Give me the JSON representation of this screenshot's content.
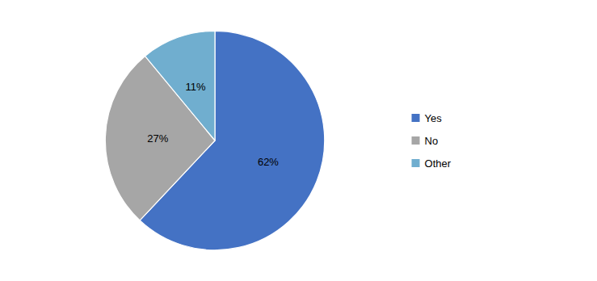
{
  "chart_data": {
    "type": "pie",
    "categories": [
      "Yes",
      "No",
      "Other"
    ],
    "values": [
      62,
      27,
      11
    ],
    "value_labels": [
      "62%",
      "27%",
      "11%"
    ],
    "colors": [
      "#4472C4",
      "#A6A6A6",
      "#70AECF"
    ],
    "data_labels": true,
    "legend": "right"
  }
}
